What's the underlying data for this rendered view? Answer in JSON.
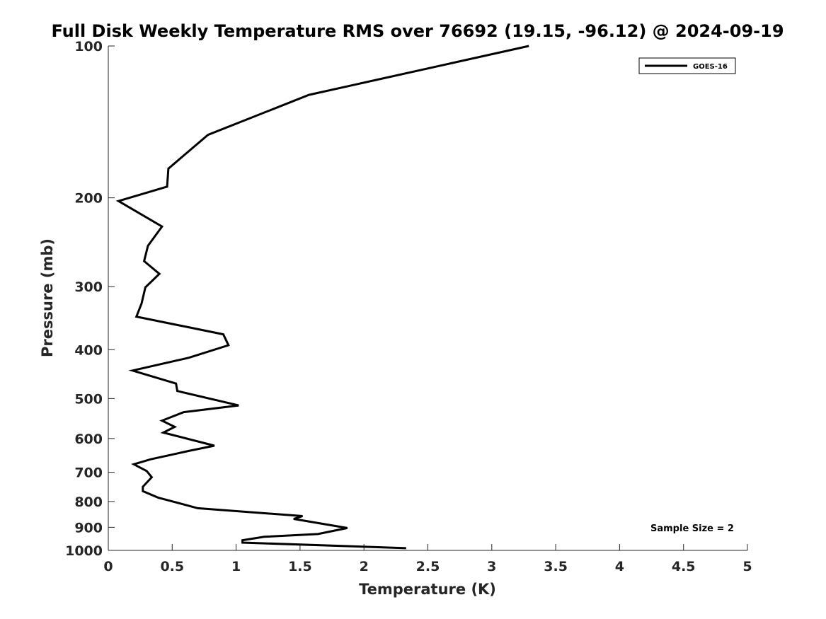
{
  "chart_data": {
    "type": "line",
    "title": "Full Disk Weekly Temperature RMS over 76692 (19.15, -96.12) @ 2024-09-19",
    "xlabel": "Temperature (K)",
    "ylabel": "Pressure (mb)",
    "xlim": [
      0,
      5
    ],
    "ylim": [
      100,
      1000
    ],
    "yscale": "log",
    "y_reversed": true,
    "grid": false,
    "legend_position": "top-right",
    "xticks": [
      0,
      0.5,
      1,
      1.5,
      2,
      2.5,
      3,
      3.5,
      4,
      4.5,
      5
    ],
    "xtick_labels": [
      "0",
      "0.5",
      "1",
      "1.5",
      "2",
      "2.5",
      "3",
      "3.5",
      "4",
      "4.5",
      "5"
    ],
    "yticks": [
      100,
      200,
      300,
      400,
      500,
      600,
      700,
      800,
      900,
      1000
    ],
    "ytick_labels": [
      "100",
      "200",
      "300",
      "400",
      "500",
      "600",
      "700",
      "800",
      "900",
      "1000"
    ],
    "annotation": "Sample Size = 2",
    "series": [
      {
        "name": "GOES-16",
        "color": "#000000",
        "points": [
          [
            3.29,
            100
          ],
          [
            1.57,
            125
          ],
          [
            0.78,
            150
          ],
          [
            0.47,
            175
          ],
          [
            0.46,
            190
          ],
          [
            0.08,
            203
          ],
          [
            0.42,
            228
          ],
          [
            0.31,
            249
          ],
          [
            0.28,
            267
          ],
          [
            0.4,
            283
          ],
          [
            0.29,
            301
          ],
          [
            0.26,
            324
          ],
          [
            0.22,
            344
          ],
          [
            0.9,
            373
          ],
          [
            0.94,
            392
          ],
          [
            0.63,
            415
          ],
          [
            0.19,
            440
          ],
          [
            0.53,
            467
          ],
          [
            0.54,
            483
          ],
          [
            1.02,
            516
          ],
          [
            0.59,
            532
          ],
          [
            0.42,
            553
          ],
          [
            0.52,
            569
          ],
          [
            0.43,
            584
          ],
          [
            0.83,
            620
          ],
          [
            0.63,
            635
          ],
          [
            0.33,
            660
          ],
          [
            0.2,
            675
          ],
          [
            0.3,
            696
          ],
          [
            0.34,
            716
          ],
          [
            0.27,
            748
          ],
          [
            0.27,
            763
          ],
          [
            0.39,
            786
          ],
          [
            0.7,
            825
          ],
          [
            1.52,
            855
          ],
          [
            1.45,
            866
          ],
          [
            1.87,
            903
          ],
          [
            1.64,
            928
          ],
          [
            1.22,
            940
          ],
          [
            1.05,
            955
          ],
          [
            1.05,
            965
          ],
          [
            2.33,
            990
          ]
        ]
      }
    ]
  }
}
